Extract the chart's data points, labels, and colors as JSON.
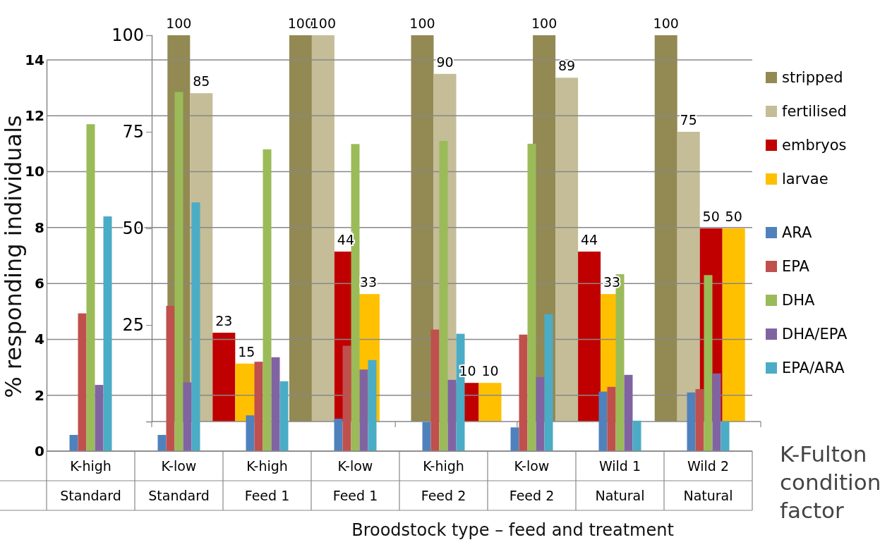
{
  "chart_data": [
    {
      "type": "bar",
      "ylabel": "K-Fulton condition factor",
      "categories": [
        "K-high\nStandard",
        "K-low\nStandard",
        "K-high\nFeed 1",
        "K-low\nFeed 1",
        "K-high\nFeed 2",
        "K-low\nFeed 2",
        "Wild 1\nNatural",
        "Wild 2\nNatural"
      ],
      "series": [
        {
          "name": "ARA",
          "color": "#4f81bd",
          "values": [
            0.58,
            0.58,
            1.28,
            1.16,
            1.04,
            0.85,
            2.13,
            2.1
          ]
        },
        {
          "name": "EPA",
          "color": "#c0504d",
          "values": [
            4.93,
            5.2,
            3.2,
            3.77,
            4.35,
            4.17,
            2.3,
            2.22
          ]
        },
        {
          "name": "DHA",
          "color": "#9bbb59",
          "values": [
            11.7,
            12.85,
            10.8,
            10.99,
            11.1,
            11.0,
            6.33,
            6.3
          ]
        },
        {
          "name": "DHA/EPA",
          "color": "#8064a2",
          "values": [
            2.37,
            2.46,
            3.36,
            2.92,
            2.55,
            2.65,
            2.73,
            2.78
          ]
        },
        {
          "name": "EPA/ARA",
          "color": "#4bacc6",
          "values": [
            8.4,
            8.9,
            2.5,
            3.26,
            4.2,
            4.9,
            1.09,
            1.06
          ]
        }
      ],
      "ylim": [
        0,
        14
      ],
      "yticks": [
        0,
        2,
        4,
        6,
        8,
        10,
        12,
        14
      ],
      "grid": "y",
      "legend": "right"
    },
    {
      "type": "bar",
      "xlabel": "Broodstock type – feed and treatment",
      "ylabel": "% responding individuals",
      "categories": [
        null,
        null,
        null,
        null,
        null
      ],
      "series": [
        {
          "name": "stripped",
          "color": "#938953",
          "values": [
            100,
            100,
            100,
            100,
            100
          ]
        },
        {
          "name": "fertilised",
          "color": "#c4bd97",
          "values": [
            85,
            100,
            90,
            89,
            75
          ]
        },
        {
          "name": "embryos",
          "color": "#c00000",
          "values": [
            23,
            44,
            10,
            44,
            50
          ]
        },
        {
          "name": "larvae",
          "color": "#ffc000",
          "values": [
            15,
            33,
            10,
            33,
            50
          ]
        }
      ],
      "ylim": [
        0,
        100
      ],
      "yticks": [
        25,
        50,
        75,
        100
      ],
      "data_labels": true,
      "legend": "right"
    }
  ]
}
